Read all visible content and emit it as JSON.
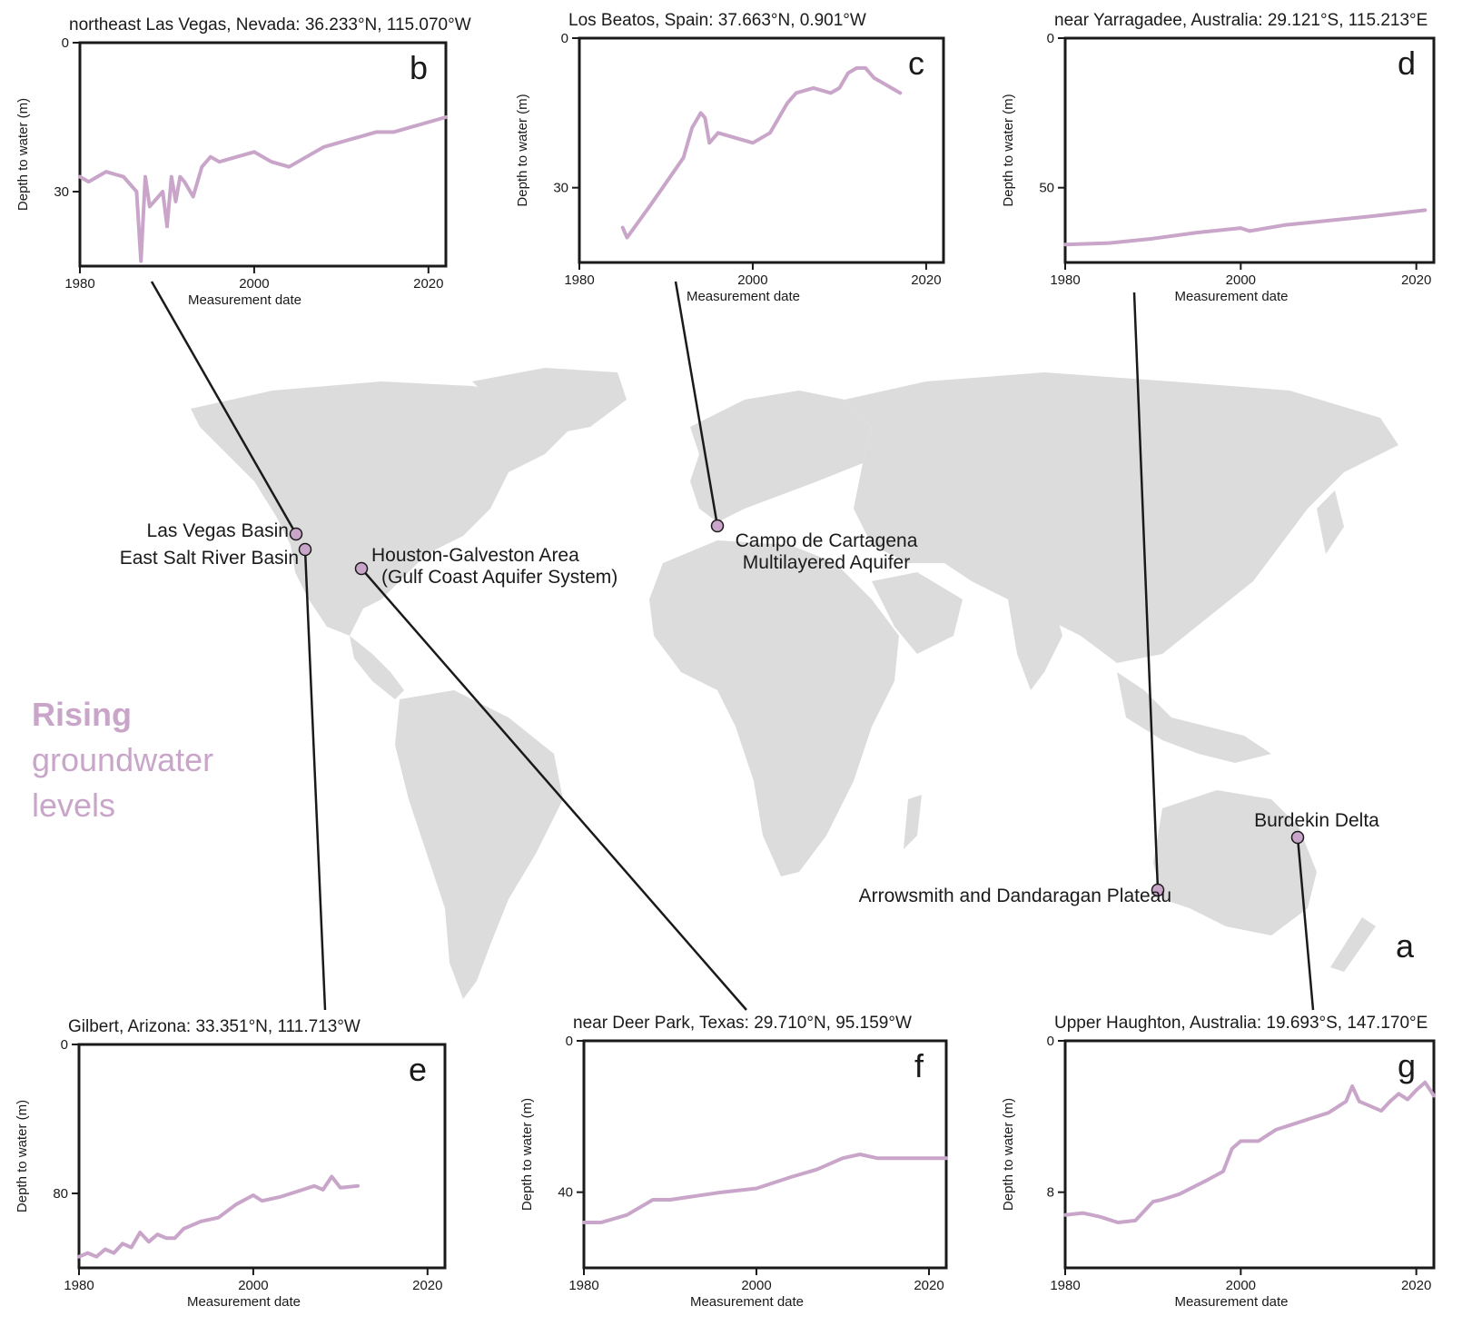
{
  "map": {
    "panel_letter": "a",
    "legend": {
      "line1": "Rising",
      "line2": "groundwater",
      "line3": "levels"
    },
    "sites": [
      {
        "id": "lv",
        "label": "Las Vegas Basin"
      },
      {
        "id": "es",
        "label": "East Salt River Basin"
      },
      {
        "id": "hg",
        "label": "Houston-Galveston Area",
        "label2": "(Gulf Coast Aquifer System)"
      },
      {
        "id": "cc",
        "label": "Campo de Cartagena",
        "label2": "Multilayered Aquifer"
      },
      {
        "id": "ad",
        "label": "Arrowsmith and Dandaragan Plateau"
      },
      {
        "id": "bd",
        "label": "Burdekin Delta"
      }
    ],
    "colors": {
      "land": "#dcdcdc",
      "marker": "#c9a6c9",
      "connector": "#1a1a1a"
    }
  },
  "chart_data": [
    {
      "type": "line",
      "panel": "b",
      "title": "northeast Las Vegas, Nevada: 36.233°N, 115.070°W",
      "xlabel": "Measurement date",
      "ylabel": "Depth to water (m)",
      "xlim": [
        1980,
        2022
      ],
      "ylim": [
        0,
        45
      ],
      "y_inverted": true,
      "x_ticks": [
        1980,
        2000,
        2020
      ],
      "y_ticks": [
        0,
        30
      ],
      "color": "#c9a6c9",
      "x": [
        1980,
        1981,
        1983,
        1985,
        1986,
        1986.5,
        1987,
        1987.5,
        1988,
        1989,
        1989.5,
        1990,
        1990.5,
        1991,
        1991.5,
        1992,
        1993,
        1994,
        1995,
        1996,
        1998,
        2000,
        2002,
        2004,
        2006,
        2008,
        2010,
        2012,
        2014,
        2016,
        2018,
        2020,
        2022
      ],
      "y": [
        27,
        28,
        26,
        27,
        29,
        30,
        44,
        27,
        33,
        31,
        30,
        37,
        27,
        32,
        27,
        28,
        31,
        25,
        23,
        24,
        23,
        22,
        24,
        25,
        23,
        21,
        20,
        19,
        18,
        18,
        17,
        16,
        15
      ]
    },
    {
      "type": "line",
      "panel": "c",
      "title": "Los Beatos, Spain: 37.663°N, 0.901°W",
      "xlabel": "Measurement date",
      "ylabel": "Depth to water (m)",
      "xlim": [
        1980,
        2022
      ],
      "ylim": [
        0,
        45
      ],
      "y_inverted": true,
      "x_ticks": [
        1980,
        2000,
        2020
      ],
      "y_ticks": [
        0,
        30
      ],
      "color": "#c9a6c9",
      "x": [
        1985,
        1985.5,
        1988,
        1990,
        1992,
        1993,
        1994,
        1994.5,
        1995,
        1996,
        1998,
        2000,
        2002,
        2004,
        2005,
        2007,
        2009,
        2010,
        2011,
        2012,
        2013,
        2014,
        2015,
        2016,
        2017
      ],
      "y": [
        38,
        40,
        34,
        29,
        24,
        18,
        15,
        16,
        21,
        19,
        20,
        21,
        19,
        13,
        11,
        10,
        11,
        10,
        7,
        6,
        6,
        8,
        9,
        10,
        11
      ]
    },
    {
      "type": "line",
      "panel": "d",
      "title": "near Yarragadee, Australia: 29.121°S, 115.213°E",
      "xlabel": "Measurement date",
      "ylabel": "Depth to water (m)",
      "xlim": [
        1980,
        2022
      ],
      "ylim": [
        0,
        75
      ],
      "y_inverted": true,
      "x_ticks": [
        1980,
        2000,
        2020
      ],
      "y_ticks": [
        0,
        50
      ],
      "color": "#c9a6c9",
      "x": [
        1980,
        1985,
        1990,
        1995,
        2000,
        2001,
        2005,
        2010,
        2015,
        2021
      ],
      "y": [
        69,
        68.5,
        67,
        65,
        63.5,
        64.5,
        62.5,
        61,
        59.5,
        57.5
      ]
    },
    {
      "type": "line",
      "panel": "e",
      "title": "Gilbert, Arizona: 33.351°N, 111.713°W",
      "xlabel": "Measurement date",
      "ylabel": "Depth to water (m)",
      "xlim": [
        1980,
        2022
      ],
      "ylim": [
        0,
        120
      ],
      "y_inverted": true,
      "x_ticks": [
        1980,
        2000,
        2020
      ],
      "y_ticks": [
        0,
        80
      ],
      "color": "#c9a6c9",
      "x": [
        1980,
        1981,
        1982,
        1983,
        1984,
        1985,
        1986,
        1987,
        1988,
        1989,
        1990,
        1991,
        1992,
        1994,
        1996,
        1998,
        2000,
        2001,
        2003,
        2005,
        2007,
        2008,
        2009,
        2010,
        2012
      ],
      "y": [
        114,
        112,
        114,
        110,
        112,
        107,
        109,
        101,
        106,
        102,
        104,
        104,
        99,
        95,
        93,
        86,
        81,
        84,
        82,
        79,
        76,
        78,
        71,
        77,
        76
      ]
    },
    {
      "type": "line",
      "panel": "f",
      "title": "near Deer Park, Texas: 29.710°N, 95.159°W",
      "xlabel": "Measurement date",
      "ylabel": "Depth to water (m)",
      "xlim": [
        1980,
        2022
      ],
      "ylim": [
        0,
        60
      ],
      "y_inverted": true,
      "x_ticks": [
        1980,
        2000,
        2020
      ],
      "y_ticks": [
        0,
        40
      ],
      "color": "#c9a6c9",
      "x": [
        1980,
        1982,
        1985,
        1988,
        1990,
        1993,
        1996,
        2000,
        2004,
        2007,
        2010,
        2012,
        2014,
        2016,
        2018,
        2020,
        2022
      ],
      "y": [
        48,
        48,
        46,
        42,
        42,
        41,
        40,
        39,
        36,
        34,
        31,
        30,
        31,
        31,
        31,
        31,
        31
      ]
    },
    {
      "type": "line",
      "panel": "g",
      "title": "Upper Haughton, Australia: 19.693°S, 147.170°E",
      "xlabel": "Measurement date",
      "ylabel": "Depth to water (m)",
      "xlim": [
        1980,
        2022
      ],
      "ylim": [
        0,
        12
      ],
      "y_inverted": true,
      "x_ticks": [
        1980,
        2000,
        2020
      ],
      "y_ticks": [
        0,
        8
      ],
      "color": "#c9a6c9",
      "x": [
        1980,
        1982,
        1984,
        1986,
        1988,
        1990,
        1991,
        1993,
        1996,
        1998,
        1999,
        2000,
        2002,
        2004,
        2006,
        2008,
        2010,
        2012,
        2012.7,
        2013.5,
        2014.5,
        2016,
        2017,
        2018,
        2019,
        2020,
        2021,
        2022
      ],
      "y": [
        9.2,
        9.1,
        9.3,
        9.6,
        9.5,
        8.5,
        8.4,
        8.1,
        7.4,
        6.9,
        5.7,
        5.3,
        5.3,
        4.7,
        4.4,
        4.1,
        3.8,
        3.2,
        2.4,
        3.2,
        3.4,
        3.7,
        3.2,
        2.8,
        3.1,
        2.6,
        2.2,
        2.9
      ]
    }
  ]
}
